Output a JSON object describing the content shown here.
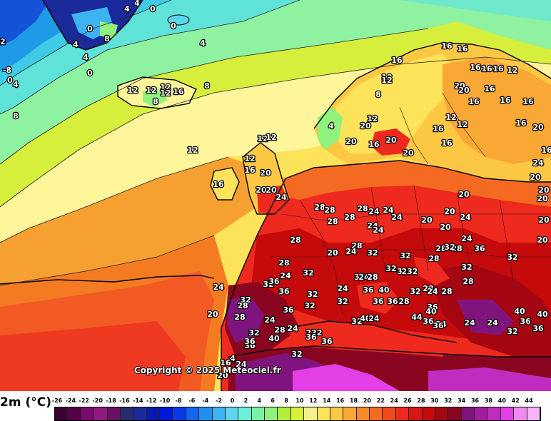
{
  "map": {
    "copyright": "Copyright © 2025 Meteociel.fr",
    "colors": {
      "sea_lightgreen": "#8ef2a0",
      "sea_cyan": "#5fe3d8",
      "sea_blue": "#1f9ae6",
      "yellowgreen": "#d6ee3c",
      "paleyellow": "#fff59a",
      "yellow": "#fde35a",
      "orange": "#f7a032",
      "darkorange": "#f47b22",
      "red": "#ee2a1e",
      "darkred": "#c40a0a",
      "maroon": "#8a0620",
      "purple": "#80147e",
      "magenta": "#e43ee6",
      "coastline": "#000000"
    },
    "labels": [
      {
        "t": "4"
      },
      {
        "t": "4"
      },
      {
        "t": "0"
      },
      {
        "t": "0"
      },
      {
        "t": "4"
      },
      {
        "t": "8"
      },
      {
        "t": "0"
      },
      {
        "t": "4"
      },
      {
        "t": "4"
      },
      {
        "t": "2"
      },
      {
        "t": "-8"
      },
      {
        "t": "0"
      },
      {
        "t": "4"
      },
      {
        "t": "0"
      },
      {
        "t": "8"
      },
      {
        "t": "16"
      },
      {
        "t": "16"
      },
      {
        "t": "16"
      },
      {
        "t": "16"
      },
      {
        "t": "16"
      },
      {
        "t": "16"
      },
      {
        "t": "12"
      },
      {
        "t": "12"
      },
      {
        "t": "12"
      },
      {
        "t": "8"
      },
      {
        "t": "12"
      },
      {
        "t": "12"
      },
      {
        "t": "12"
      },
      {
        "t": "8"
      },
      {
        "t": "20"
      },
      {
        "t": "20"
      },
      {
        "t": "16"
      },
      {
        "t": "16"
      },
      {
        "t": "16"
      },
      {
        "t": "16"
      },
      {
        "t": "8"
      },
      {
        "t": "16"
      },
      {
        "t": "12"
      },
      {
        "t": "12"
      },
      {
        "t": "16"
      },
      {
        "t": "12"
      },
      {
        "t": "12"
      },
      {
        "t": "4"
      },
      {
        "t": "20"
      },
      {
        "t": "20"
      },
      {
        "t": "16"
      },
      {
        "t": "20"
      },
      {
        "t": "16"
      },
      {
        "t": "16"
      },
      {
        "t": "20"
      },
      {
        "t": "20"
      },
      {
        "t": "12"
      },
      {
        "t": "12"
      },
      {
        "t": "12"
      },
      {
        "t": "12"
      },
      {
        "t": "16"
      },
      {
        "t": "20"
      },
      {
        "t": "16"
      },
      {
        "t": "20"
      },
      {
        "t": "20"
      },
      {
        "t": "24"
      },
      {
        "t": "16"
      },
      {
        "t": "24"
      },
      {
        "t": "20"
      },
      {
        "t": "20"
      },
      {
        "t": "20"
      },
      {
        "t": "20"
      },
      {
        "t": "28"
      },
      {
        "t": "28"
      },
      {
        "t": "28"
      },
      {
        "t": "28"
      },
      {
        "t": "24"
      },
      {
        "t": "24"
      },
      {
        "t": "28"
      },
      {
        "t": "24"
      },
      {
        "t": "20"
      },
      {
        "t": "24"
      },
      {
        "t": "24"
      },
      {
        "t": "24"
      },
      {
        "t": "20"
      },
      {
        "t": "20"
      },
      {
        "t": "28"
      },
      {
        "t": "28"
      },
      {
        "t": "20"
      },
      {
        "t": "24"
      },
      {
        "t": "32"
      },
      {
        "t": "32"
      },
      {
        "t": "24"
      },
      {
        "t": "28"
      },
      {
        "t": "28"
      },
      {
        "t": "32"
      },
      {
        "t": "36"
      },
      {
        "t": "32"
      },
      {
        "t": "20"
      },
      {
        "t": "20"
      },
      {
        "t": "28"
      },
      {
        "t": "24"
      },
      {
        "t": "32"
      },
      {
        "t": "28"
      },
      {
        "t": "32"
      },
      {
        "t": "32"
      },
      {
        "t": "36"
      },
      {
        "t": "36"
      },
      {
        "t": "24"
      },
      {
        "t": "28"
      },
      {
        "t": "32"
      },
      {
        "t": "32"
      },
      {
        "t": "232"
      },
      {
        "t": "28"
      },
      {
        "t": "36"
      },
      {
        "t": "32"
      },
      {
        "t": "28"
      },
      {
        "t": "32"
      },
      {
        "t": "24"
      },
      {
        "t": "36"
      },
      {
        "t": "40"
      },
      {
        "t": "32"
      },
      {
        "t": "28"
      },
      {
        "t": "24"
      },
      {
        "t": "28"
      },
      {
        "t": "20"
      },
      {
        "t": "24"
      },
      {
        "t": "28"
      },
      {
        "t": "24"
      },
      {
        "t": "32"
      },
      {
        "t": "36"
      },
      {
        "t": "32"
      },
      {
        "t": "36"
      },
      {
        "t": "36"
      },
      {
        "t": "28"
      },
      {
        "t": "32"
      },
      {
        "t": "40"
      },
      {
        "t": "24"
      },
      {
        "t": "36"
      },
      {
        "t": "24"
      },
      {
        "t": "24"
      },
      {
        "t": "24"
      },
      {
        "t": "32"
      },
      {
        "t": "36"
      },
      {
        "t": "36"
      },
      {
        "t": "40"
      },
      {
        "t": "40"
      },
      {
        "t": "36"
      },
      {
        "t": "36"
      },
      {
        "t": "40"
      },
      {
        "t": "44"
      },
      {
        "t": "32"
      },
      {
        "t": "28"
      },
      {
        "t": "24"
      },
      {
        "t": "232"
      },
      {
        "t": "36"
      },
      {
        "t": "36"
      },
      {
        "t": "36"
      },
      {
        "t": "40"
      },
      {
        "t": "36"
      },
      {
        "t": "32"
      },
      {
        "t": "4"
      },
      {
        "t": "24"
      },
      {
        "t": "16"
      },
      {
        "t": "20"
      }
    ]
  },
  "legend": {
    "title": "2m (°C)",
    "ticks": [
      "-26",
      "-24",
      "-22",
      "-20",
      "-18",
      "-16",
      "-14",
      "-12",
      "-10",
      "-8",
      "-6",
      "-4",
      "-2",
      "0",
      "2",
      "4",
      "6",
      "8",
      "10",
      "12",
      "14",
      "16",
      "18",
      "20",
      "22",
      "24",
      "26",
      "28",
      "30",
      "32",
      "34",
      "36",
      "38",
      "40",
      "42",
      "44"
    ],
    "colors": [
      "#3a0030",
      "#560048",
      "#7a0a6e",
      "#8e1a82",
      "#6a1262",
      "#2a2a6e",
      "#1a2a9a",
      "#0a1ab0",
      "#0016d8",
      "#0a3ae6",
      "#1466f0",
      "#1e90f2",
      "#3cb4f2",
      "#5fd6ee",
      "#6af0d8",
      "#7af2a6",
      "#8ef27c",
      "#b4ee3c",
      "#d8f03a",
      "#f6f08a",
      "#fde35a",
      "#fcc844",
      "#f9a836",
      "#f78a2a",
      "#f46a22",
      "#ee4a1e",
      "#ee2a1e",
      "#d81616",
      "#c40a0a",
      "#a40612",
      "#8a0620",
      "#80147e",
      "#a01e9c",
      "#c02cc0",
      "#e43ee6",
      "#f08af2",
      "#f6b4f6"
    ]
  }
}
